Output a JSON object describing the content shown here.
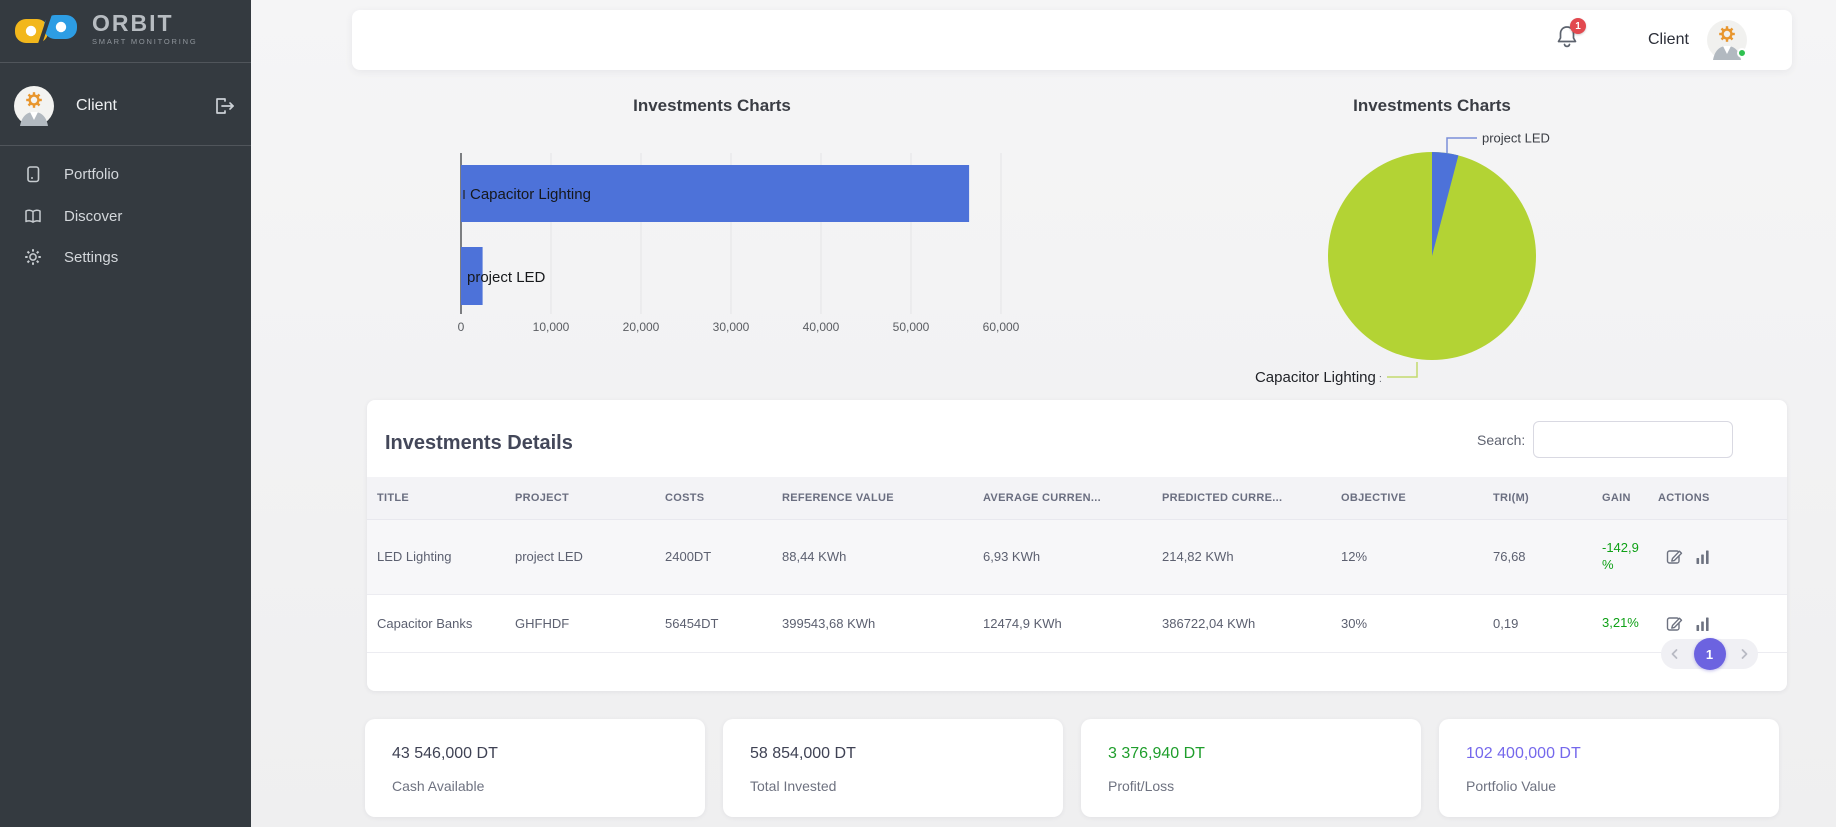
{
  "brand": {
    "name": "ORBIT",
    "tagline": "SMART MONITORING"
  },
  "header": {
    "user_label": "Client",
    "notification_count": "1"
  },
  "sidebar": {
    "user_label": "Client",
    "items": [
      {
        "label": "Portfolio"
      },
      {
        "label": "Discover"
      },
      {
        "label": "Settings"
      }
    ]
  },
  "chart_data": [
    {
      "type": "bar",
      "orientation": "horizontal",
      "title": "Investments Charts",
      "categories": [
        "Capacitor Lighting",
        "project LED"
      ],
      "values": [
        56454,
        2400
      ],
      "xlim": [
        0,
        60000
      ],
      "xticks": [
        0,
        10000,
        20000,
        30000,
        40000,
        50000,
        60000
      ],
      "xtick_labels": [
        "0",
        "10,000",
        "20,000",
        "30,000",
        "40,000",
        "50,000",
        "60,000"
      ],
      "bar_color": "#4d72d9",
      "grid": true,
      "legend": false
    },
    {
      "type": "pie",
      "title": "Investments Charts",
      "labels": [
        "project LED",
        "Capacitor Lighting"
      ],
      "label_suffix": " :",
      "values": [
        2400,
        56454
      ],
      "colors": [
        "#4d72d9",
        "#b3d334"
      ],
      "legend": false
    }
  ],
  "details": {
    "title": "Investments Details",
    "search_label": "Search:",
    "search_value": "",
    "columns": [
      "TITLE",
      "PROJECT",
      "COSTS",
      "REFERENCE VALUE",
      "AVERAGE CURREN...",
      "PREDICTED CURRE...",
      "OBJECTIVE",
      "TRI(M)",
      "GAIN",
      "ACTIONS"
    ],
    "rows": [
      {
        "title": "LED Lighting",
        "project": "project LED",
        "costs": "2400DT",
        "reference": "88,44 KWh",
        "average": "6,93 KWh",
        "predicted": "214,82 KWh",
        "objective": "12%",
        "tri": "76,68",
        "gain": "-142,9 %",
        "gain_color": "#0fa117"
      },
      {
        "title": "Capacitor Banks",
        "project": "GHFHDF",
        "costs": "56454DT",
        "reference": "399543,68 KWh",
        "average": "12474,9 KWh",
        "predicted": "386722,04 KWh",
        "objective": "30%",
        "tri": "0,19",
        "gain": "3,21%",
        "gain_color": "#0fa117"
      }
    ],
    "pagination": {
      "current": "1"
    }
  },
  "stats": [
    {
      "value": "43 546,000 DT",
      "label": "Cash Available",
      "color": "#3f4254"
    },
    {
      "value": "58 854,000 DT",
      "label": "Total Invested",
      "color": "#3f4254"
    },
    {
      "value": "3 376,940 DT",
      "label": "Profit/Loss",
      "color": "#1f9e2c"
    },
    {
      "value": "102 400,000 DT",
      "label": "Portfolio Value",
      "color": "#7568ec"
    }
  ]
}
